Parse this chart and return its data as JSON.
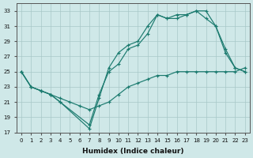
{
  "title": "",
  "xlabel": "Humidex (Indice chaleur)",
  "ylabel": "",
  "xlim": [
    -0.5,
    23.5
  ],
  "ylim": [
    17,
    34
  ],
  "yticks": [
    17,
    19,
    21,
    23,
    25,
    27,
    29,
    31,
    33
  ],
  "xticks": [
    0,
    1,
    2,
    3,
    4,
    5,
    6,
    7,
    8,
    9,
    10,
    11,
    12,
    13,
    14,
    15,
    16,
    17,
    18,
    19,
    20,
    21,
    22,
    23
  ],
  "bg_color": "#cfe8e8",
  "line_color": "#1a7a6e",
  "grid_color": "#a8c8c8",
  "series": [
    {
      "x": [
        0,
        1,
        2,
        3,
        4,
        5,
        6,
        7,
        8,
        9,
        10,
        11,
        12,
        13,
        14,
        15,
        16,
        17,
        18,
        19,
        20,
        21,
        22,
        23
      ],
      "y": [
        25,
        23,
        22.5,
        22,
        21.5,
        21,
        20.5,
        20,
        20.5,
        21,
        22,
        23,
        23.5,
        24,
        24.5,
        24.5,
        25,
        25,
        25,
        25,
        25,
        25,
        25,
        25.5
      ]
    },
    {
      "x": [
        0,
        1,
        2,
        3,
        4,
        7,
        8,
        9,
        10,
        11,
        12,
        13,
        14,
        15,
        16,
        17,
        18,
        19,
        20,
        21,
        22,
        23
      ],
      "y": [
        25,
        23,
        22.5,
        22,
        21,
        17.5,
        21.5,
        25.5,
        27.5,
        28.5,
        29,
        31,
        32.5,
        32,
        32.5,
        32.5,
        33,
        33,
        31,
        27.5,
        25.5,
        25
      ]
    },
    {
      "x": [
        0,
        1,
        2,
        3,
        4,
        7,
        8,
        9,
        10,
        11,
        12,
        13,
        14,
        15,
        16,
        17,
        18,
        19,
        20,
        21,
        22,
        23
      ],
      "y": [
        25,
        23,
        22.5,
        22,
        21,
        18,
        22,
        25,
        26,
        28,
        28.5,
        30,
        32.5,
        32,
        32,
        32.5,
        33,
        32,
        31,
        28,
        25.5,
        25
      ]
    }
  ]
}
